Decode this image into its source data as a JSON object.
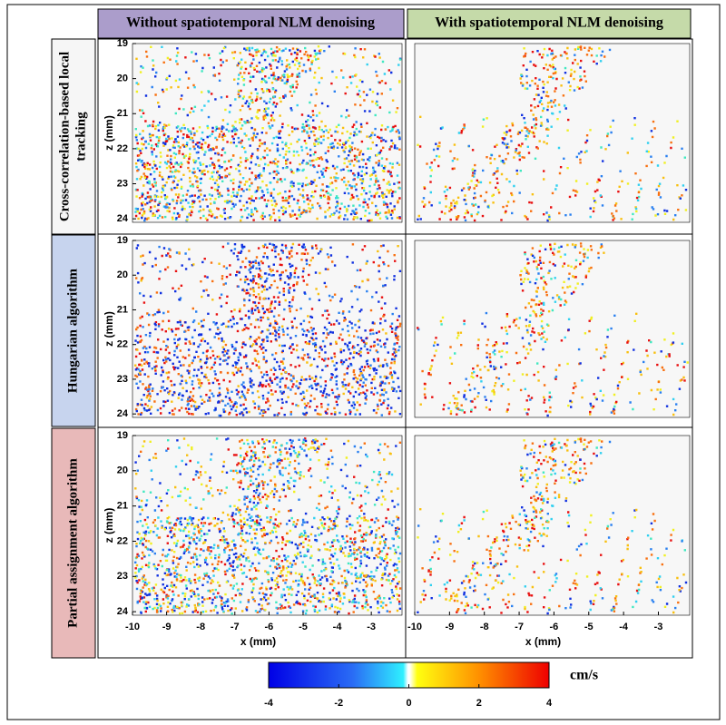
{
  "columns": [
    "Without spatiotemporal NLM denoising",
    "With spatiotemporal NLM denoising"
  ],
  "rows": [
    {
      "label_lines": [
        "Cross-correlation-based local",
        "tracking"
      ]
    },
    {
      "label_lines": [
        "Hungarian algorithm"
      ]
    },
    {
      "label_lines": [
        "Partial assignment algorithm"
      ]
    }
  ],
  "axes": {
    "z_label": "z (mm)",
    "x_label": "x (mm)",
    "zlim": [
      19,
      24.1
    ],
    "zticks": [
      19,
      20,
      21,
      22,
      23,
      24
    ],
    "xlim": [
      -10,
      -2.1
    ],
    "xticks": [
      -10,
      -9,
      -8,
      -7,
      -6,
      -5,
      -4,
      -3
    ]
  },
  "colorbar": {
    "lim": [
      -4,
      4
    ],
    "ticks": [
      -4,
      -2,
      0,
      2,
      4
    ],
    "unit": "cm/s"
  }
}
